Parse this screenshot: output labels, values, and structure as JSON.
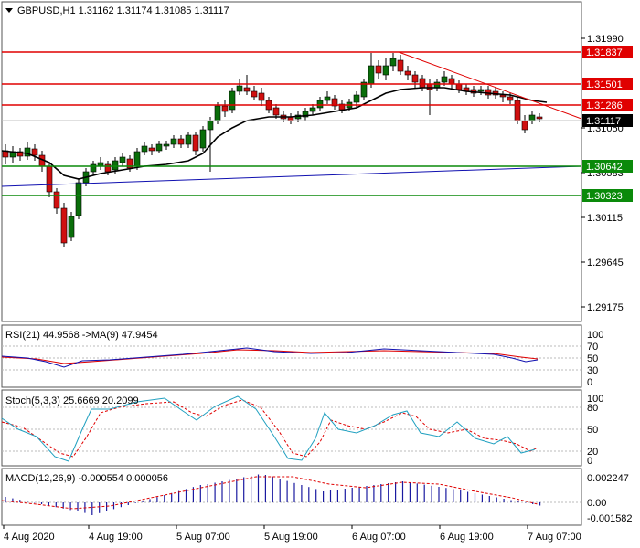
{
  "header": {
    "symbol_line": "GBPUSD,H1  1.31162 1.31174 1.31085 1.31117"
  },
  "price_axis": {
    "ticks": [
      "1.31990",
      "1.31050",
      "1.30583",
      "1.30115",
      "1.29645",
      "1.29175"
    ],
    "tick_values": [
      1.3199,
      1.3105,
      1.30583,
      1.30115,
      1.29645,
      1.29175
    ]
  },
  "levels": {
    "red": [
      {
        "label": "1.31837",
        "value": 1.31837
      },
      {
        "label": "1.31501",
        "value": 1.31501
      },
      {
        "label": "1.31286",
        "value": 1.31286
      }
    ],
    "green": [
      {
        "label": "1.30642",
        "value": 1.30642
      },
      {
        "label": "1.30323",
        "value": 1.30323
      }
    ],
    "current": {
      "label": "1.31117",
      "value": 1.31117
    }
  },
  "rsi": {
    "label": "RSI(21) 44.9568  ->MA(9) 47.9454",
    "ticks": [
      "100",
      "70",
      "50",
      "30",
      "0"
    ]
  },
  "stoch": {
    "label": "Stoch(5,3,3) 25.6669 20.2099",
    "ticks": [
      "100",
      "80",
      "50",
      "20",
      "0"
    ]
  },
  "macd": {
    "label": "MACD(12,26,9) -0.000554 0.000056",
    "ticks": [
      "0.002247",
      "0.00",
      "-0.001582"
    ]
  },
  "time_axis": [
    "4 Aug 2020",
    "4 Aug 19:00",
    "5 Aug 07:00",
    "5 Aug 19:00",
    "6 Aug 07:00",
    "6 Aug 19:00",
    "7 Aug 07:00"
  ],
  "colors": {
    "bull_candle": "#0a6e0a",
    "bear_candle": "#d01010",
    "red_level": "#e00000",
    "green_level": "#0a8a0a",
    "blue_trend": "#1010b0",
    "ma_line": "#000000",
    "stoch_main": "#20a0c0",
    "signal": "#e00000"
  }
}
